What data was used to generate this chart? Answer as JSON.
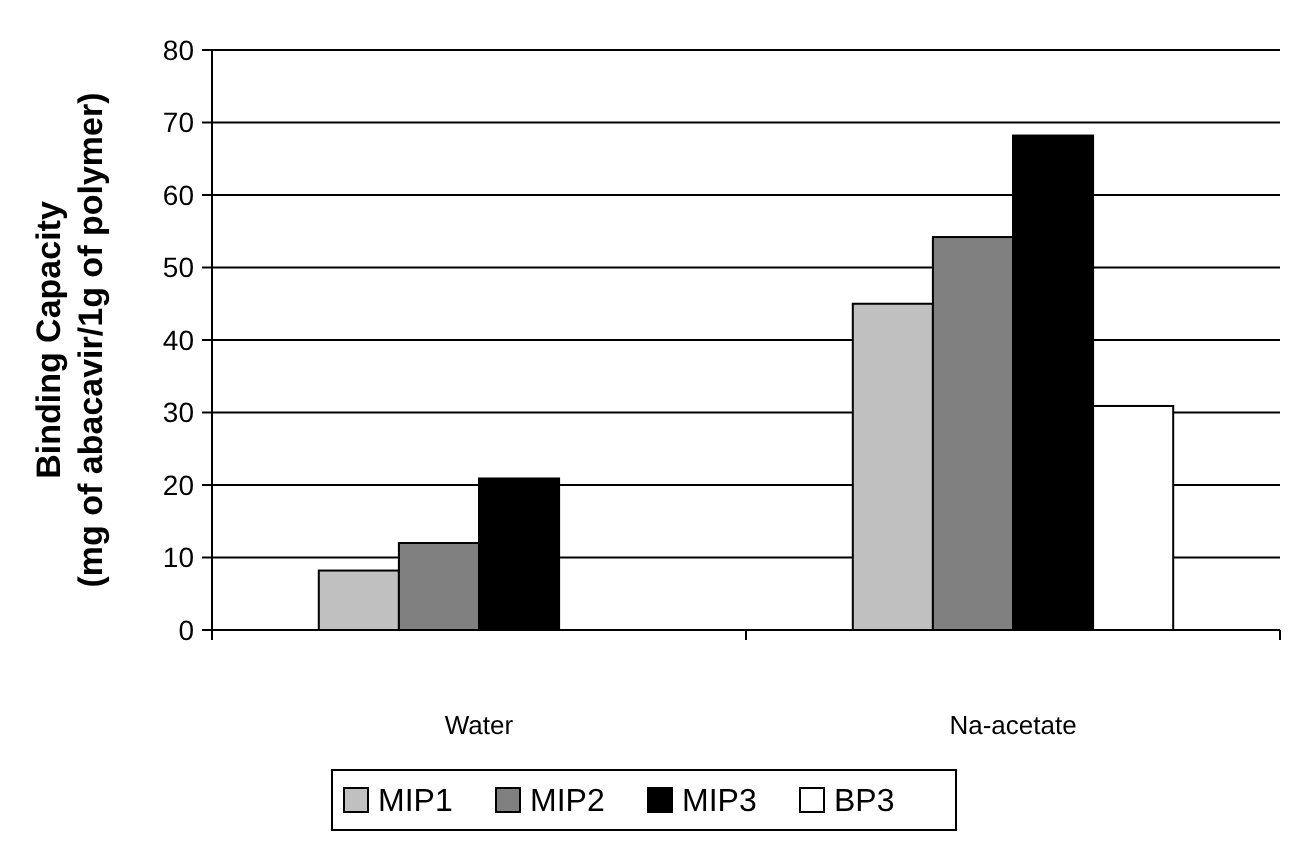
{
  "chart_data": {
    "type": "bar",
    "ylabel": "Binding Capacity\n(mg of abacavir/1g of polymer)",
    "categories": [
      "Water",
      "Na-acetate"
    ],
    "series": [
      {
        "name": "MIP1",
        "color": "#c0c0c0",
        "values": [
          8.2,
          45
        ]
      },
      {
        "name": "MIP2",
        "color": "#808080",
        "values": [
          12,
          54.2
        ]
      },
      {
        "name": "MIP3",
        "color": "#000000",
        "values": [
          20.9,
          68.2
        ]
      },
      {
        "name": "BP3",
        "color": "#ffffff",
        "values": [
          null,
          30.9
        ]
      }
    ],
    "ylim": [
      0,
      80
    ],
    "yticks": [
      0,
      10,
      20,
      30,
      40,
      50,
      60,
      70,
      80
    ],
    "grid": "y",
    "legend": "bottom"
  }
}
